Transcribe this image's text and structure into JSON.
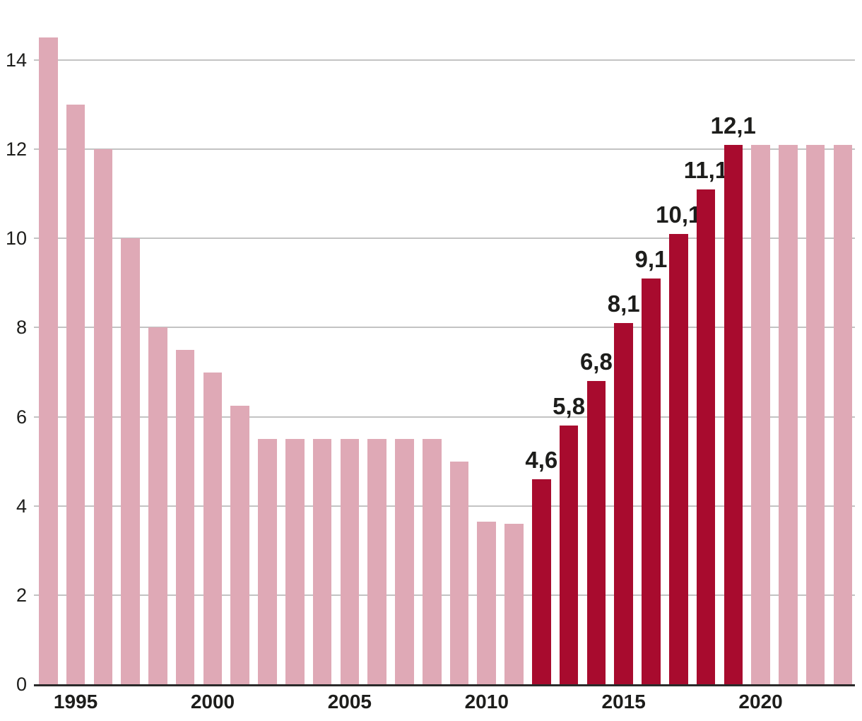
{
  "chart_data": {
    "type": "bar",
    "title": "",
    "xlabel": "",
    "ylabel": "",
    "x": [
      1994,
      1995,
      1996,
      1997,
      1998,
      1999,
      2000,
      2001,
      2002,
      2003,
      2004,
      2005,
      2006,
      2007,
      2008,
      2009,
      2010,
      2011,
      2012,
      2013,
      2014,
      2015,
      2016,
      2017,
      2018,
      2019,
      2020,
      2021,
      2022,
      2023
    ],
    "values": [
      14.5,
      13.0,
      12.0,
      10.0,
      8.0,
      7.5,
      7.0,
      6.25,
      5.5,
      5.5,
      5.5,
      5.5,
      5.5,
      5.5,
      5.5,
      5.0,
      3.65,
      3.6,
      4.6,
      5.8,
      6.8,
      8.1,
      9.1,
      10.1,
      11.1,
      12.1,
      12.1,
      12.1,
      12.1,
      12.1
    ],
    "highlight_years": [
      2012,
      2013,
      2014,
      2015,
      2016,
      2017,
      2018,
      2019
    ],
    "data_labels": {
      "2012": "4,6",
      "2013": "5,8",
      "2014": "6,8",
      "2015": "8,1",
      "2016": "9,1",
      "2017": "10,1",
      "2018": "11,1",
      "2019": "12,1"
    },
    "yticks": [
      0,
      2,
      4,
      6,
      8,
      10,
      12,
      14
    ],
    "ytick_labels": [
      "0",
      "2",
      "4",
      "6",
      "8",
      "10",
      "12",
      "14"
    ],
    "xticks": [
      1995,
      2000,
      2005,
      2010,
      2015,
      2020
    ],
    "xtick_labels": [
      "1995",
      "2000",
      "2005",
      "2010",
      "2015",
      "2020"
    ],
    "ylim": [
      0,
      14.5
    ],
    "grid": true,
    "legend": null,
    "colors": {
      "bar": "#dfa9b6",
      "highlight": "#a80b2e",
      "gridline": "#c3c3c3",
      "axis": "#2a2a2a",
      "text": "#1d1d1b"
    }
  }
}
